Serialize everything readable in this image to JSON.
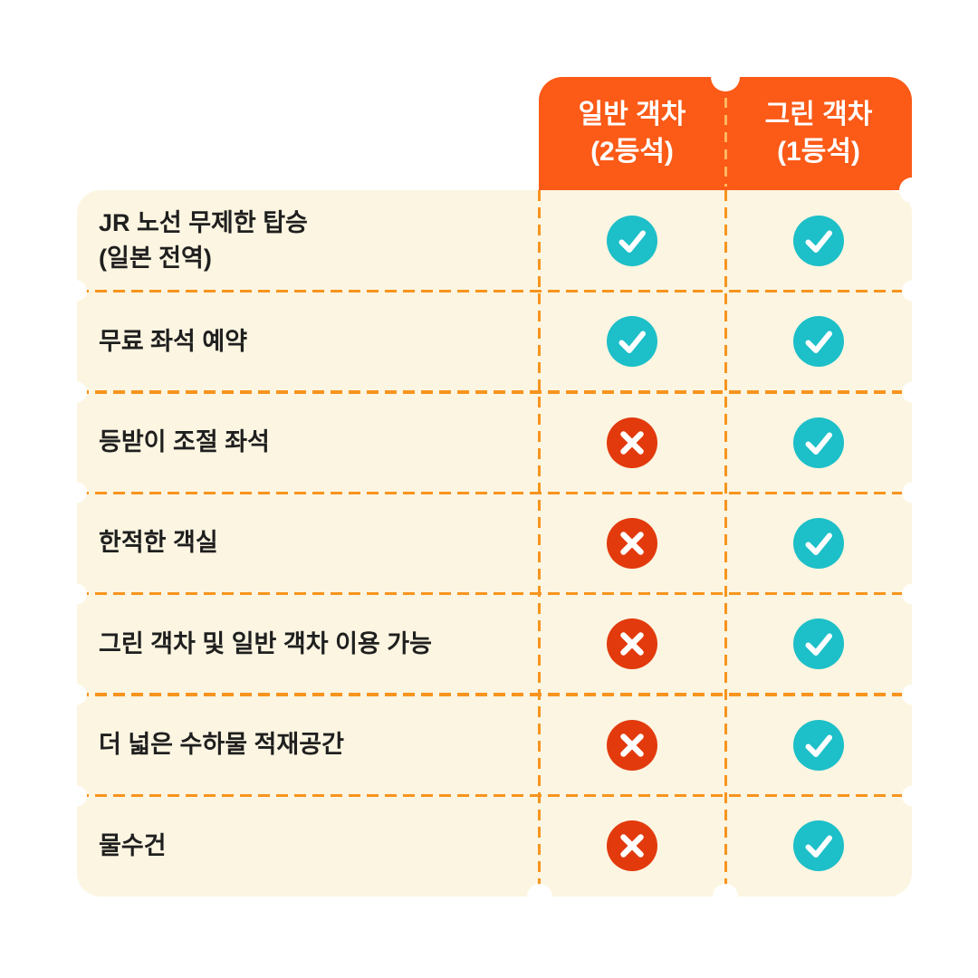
{
  "header": {
    "columns": [
      {
        "line1": "일반 객차",
        "line2": "(2등석)"
      },
      {
        "line1": "그린 객차",
        "line2": "(1등석)"
      }
    ]
  },
  "rows": [
    {
      "label_lines": [
        "JR 노선 무제한 탑승",
        "(일본 전역)"
      ],
      "ordinary": "yes",
      "green": "yes"
    },
    {
      "label_lines": [
        "무료 좌석 예약"
      ],
      "ordinary": "yes",
      "green": "yes"
    },
    {
      "label_lines": [
        "등받이 조절 좌석"
      ],
      "ordinary": "no",
      "green": "yes"
    },
    {
      "label_lines": [
        "한적한 객실"
      ],
      "ordinary": "no",
      "green": "yes"
    },
    {
      "label_lines": [
        "그린 객차 및 일반 객차 이용 가능"
      ],
      "ordinary": "no",
      "green": "yes"
    },
    {
      "label_lines": [
        "더 넓은 수하물 적재공간"
      ],
      "ordinary": "no",
      "green": "yes"
    },
    {
      "label_lines": [
        "물수건"
      ],
      "ordinary": "no",
      "green": "yes"
    }
  ],
  "colors": {
    "header_orange": "#FB5A17",
    "panel_cream": "#FCF5E1",
    "dash_orange": "#F7941E",
    "check_teal": "#1DBFC8",
    "cross_red": "#E23A0D",
    "label_text": "#1F1F1F",
    "header_text": "#FFFFFF"
  },
  "chart_data": {
    "type": "table",
    "title": "",
    "columns": [
      "일반 객차 (2등석)",
      "그린 객차 (1등석)"
    ],
    "rows": [
      {
        "feature": "JR 노선 무제한 탑승 (일본 전역)",
        "values": [
          true,
          true
        ]
      },
      {
        "feature": "무료 좌석 예약",
        "values": [
          true,
          true
        ]
      },
      {
        "feature": "등받이 조절 좌석",
        "values": [
          false,
          true
        ]
      },
      {
        "feature": "한적한 객실",
        "values": [
          false,
          true
        ]
      },
      {
        "feature": "그린 객차 및 일반 객차 이용 가능",
        "values": [
          false,
          true
        ]
      },
      {
        "feature": "더 넓은 수하물 적재공간",
        "values": [
          false,
          true
        ]
      },
      {
        "feature": "물수건",
        "values": [
          false,
          true
        ]
      }
    ]
  }
}
